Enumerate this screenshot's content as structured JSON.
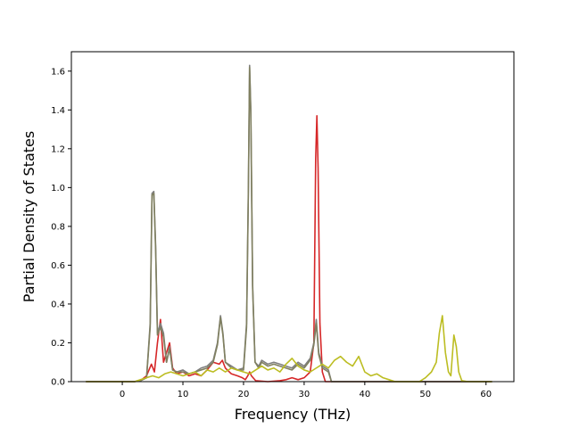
{
  "chart_data": {
    "type": "line",
    "xlabel": "Frequency (THz)",
    "ylabel": "Partial Density of States",
    "xlim": [
      -8.4,
      64.6
    ],
    "ylim": [
      0.0,
      1.7
    ],
    "xticks": [
      0,
      10,
      20,
      30,
      40,
      50,
      60
    ],
    "yticks": [
      0.0,
      0.2,
      0.4,
      0.6,
      0.8,
      1.0,
      1.2,
      1.4,
      1.6
    ],
    "xtick_labels": [
      "0",
      "10",
      "20",
      "30",
      "40",
      "50",
      "60"
    ],
    "ytick_labels": [
      "0.0",
      "0.2",
      "0.4",
      "0.6",
      "0.8",
      "1.0",
      "1.2",
      "1.4",
      "1.6"
    ],
    "grid": false,
    "series": [
      {
        "color": "#d62728",
        "points": [
          [
            -6,
            0
          ],
          [
            2,
            0
          ],
          [
            3,
            0.005
          ],
          [
            4,
            0.03
          ],
          [
            4.8,
            0.09
          ],
          [
            5.3,
            0.05
          ],
          [
            5.8,
            0.2
          ],
          [
            6.3,
            0.32
          ],
          [
            6.8,
            0.1
          ],
          [
            7.3,
            0.15
          ],
          [
            7.8,
            0.2
          ],
          [
            8.3,
            0.07
          ],
          [
            9,
            0.04
          ],
          [
            10,
            0.05
          ],
          [
            11,
            0.03
          ],
          [
            12,
            0.04
          ],
          [
            13,
            0.03
          ],
          [
            14,
            0.06
          ],
          [
            15,
            0.1
          ],
          [
            16,
            0.09
          ],
          [
            16.5,
            0.11
          ],
          [
            17,
            0.07
          ],
          [
            18,
            0.04
          ],
          [
            19,
            0.03
          ],
          [
            19.8,
            0.02
          ],
          [
            20.3,
            0.01
          ],
          [
            20.7,
            0.03
          ],
          [
            21,
            0.05
          ],
          [
            21.3,
            0.03
          ],
          [
            22,
            0.005
          ],
          [
            24,
            0.0
          ],
          [
            26,
            0.005
          ],
          [
            27,
            0.01
          ],
          [
            28,
            0.02
          ],
          [
            29,
            0.01
          ],
          [
            30,
            0.02
          ],
          [
            31,
            0.05
          ],
          [
            31.6,
            0.2
          ],
          [
            31.9,
            1.15
          ],
          [
            32.1,
            1.37
          ],
          [
            32.3,
            1.1
          ],
          [
            32.6,
            0.3
          ],
          [
            33,
            0.05
          ],
          [
            33.5,
            0.0
          ],
          [
            36,
            0.0
          ],
          [
            61,
            0.0
          ]
        ]
      },
      {
        "color": "#7f7f7f",
        "points": [
          [
            -6,
            0
          ],
          [
            2,
            0
          ],
          [
            3,
            0.005
          ],
          [
            4,
            0.02
          ],
          [
            4.6,
            0.3
          ],
          [
            4.9,
            0.97
          ],
          [
            5.2,
            0.98
          ],
          [
            5.5,
            0.7
          ],
          [
            5.8,
            0.25
          ],
          [
            6.3,
            0.3
          ],
          [
            6.8,
            0.25
          ],
          [
            7.3,
            0.1
          ],
          [
            7.8,
            0.18
          ],
          [
            8.3,
            0.06
          ],
          [
            9,
            0.05
          ],
          [
            10,
            0.06
          ],
          [
            11,
            0.04
          ],
          [
            12,
            0.05
          ],
          [
            13,
            0.07
          ],
          [
            14,
            0.08
          ],
          [
            15,
            0.11
          ],
          [
            15.7,
            0.2
          ],
          [
            16.2,
            0.34
          ],
          [
            16.6,
            0.25
          ],
          [
            17,
            0.1
          ],
          [
            18,
            0.08
          ],
          [
            19,
            0.06
          ],
          [
            20,
            0.07
          ],
          [
            20.5,
            0.3
          ],
          [
            20.8,
            1.0
          ],
          [
            21,
            1.63
          ],
          [
            21.2,
            1.4
          ],
          [
            21.5,
            0.5
          ],
          [
            21.9,
            0.1
          ],
          [
            22.5,
            0.08
          ],
          [
            23,
            0.11
          ],
          [
            24,
            0.09
          ],
          [
            25,
            0.1
          ],
          [
            26,
            0.09
          ],
          [
            27,
            0.08
          ],
          [
            28,
            0.07
          ],
          [
            29,
            0.1
          ],
          [
            30,
            0.08
          ],
          [
            31,
            0.12
          ],
          [
            31.6,
            0.2
          ],
          [
            32,
            0.32
          ],
          [
            32.4,
            0.15
          ],
          [
            33,
            0.08
          ],
          [
            34,
            0.06
          ],
          [
            34.5,
            0.0
          ],
          [
            61,
            0.0
          ]
        ]
      },
      {
        "color": "#808060",
        "points": [
          [
            -6,
            0
          ],
          [
            2,
            0
          ],
          [
            3,
            0.005
          ],
          [
            4,
            0.02
          ],
          [
            4.6,
            0.28
          ],
          [
            4.9,
            0.96
          ],
          [
            5.2,
            0.97
          ],
          [
            5.5,
            0.68
          ],
          [
            5.8,
            0.24
          ],
          [
            6.3,
            0.28
          ],
          [
            6.8,
            0.23
          ],
          [
            7.3,
            0.1
          ],
          [
            7.8,
            0.17
          ],
          [
            8.3,
            0.06
          ],
          [
            9,
            0.05
          ],
          [
            10,
            0.05
          ],
          [
            11,
            0.04
          ],
          [
            12,
            0.05
          ],
          [
            13,
            0.06
          ],
          [
            14,
            0.07
          ],
          [
            15,
            0.1
          ],
          [
            15.7,
            0.19
          ],
          [
            16.2,
            0.33
          ],
          [
            16.6,
            0.24
          ],
          [
            17,
            0.1
          ],
          [
            18,
            0.07
          ],
          [
            19,
            0.06
          ],
          [
            20,
            0.06
          ],
          [
            20.5,
            0.28
          ],
          [
            20.8,
            0.98
          ],
          [
            21,
            1.62
          ],
          [
            21.2,
            1.38
          ],
          [
            21.5,
            0.48
          ],
          [
            21.9,
            0.1
          ],
          [
            22.5,
            0.07
          ],
          [
            23,
            0.1
          ],
          [
            24,
            0.08
          ],
          [
            25,
            0.09
          ],
          [
            26,
            0.08
          ],
          [
            27,
            0.07
          ],
          [
            28,
            0.06
          ],
          [
            29,
            0.09
          ],
          [
            30,
            0.07
          ],
          [
            31,
            0.11
          ],
          [
            31.6,
            0.19
          ],
          [
            32,
            0.3
          ],
          [
            32.4,
            0.14
          ],
          [
            33,
            0.07
          ],
          [
            34,
            0.05
          ],
          [
            34.5,
            0.0
          ],
          [
            61,
            0.0
          ]
        ]
      },
      {
        "color": "#bcbd22",
        "points": [
          [
            -6,
            0
          ],
          [
            2,
            0
          ],
          [
            3,
            0.01
          ],
          [
            4,
            0.02
          ],
          [
            5,
            0.03
          ],
          [
            6,
            0.02
          ],
          [
            7,
            0.04
          ],
          [
            8,
            0.05
          ],
          [
            9,
            0.04
          ],
          [
            10,
            0.03
          ],
          [
            11,
            0.04
          ],
          [
            12,
            0.05
          ],
          [
            13,
            0.03
          ],
          [
            14,
            0.06
          ],
          [
            15,
            0.05
          ],
          [
            16,
            0.07
          ],
          [
            17,
            0.05
          ],
          [
            18,
            0.07
          ],
          [
            19,
            0.06
          ],
          [
            20,
            0.05
          ],
          [
            21,
            0.04
          ],
          [
            22,
            0.06
          ],
          [
            23,
            0.08
          ],
          [
            24,
            0.06
          ],
          [
            25,
            0.07
          ],
          [
            26,
            0.05
          ],
          [
            27,
            0.09
          ],
          [
            28,
            0.12
          ],
          [
            29,
            0.08
          ],
          [
            30,
            0.06
          ],
          [
            31,
            0.05
          ],
          [
            32,
            0.07
          ],
          [
            33,
            0.09
          ],
          [
            34,
            0.07
          ],
          [
            35,
            0.11
          ],
          [
            36,
            0.13
          ],
          [
            37,
            0.1
          ],
          [
            38,
            0.08
          ],
          [
            39,
            0.13
          ],
          [
            40,
            0.05
          ],
          [
            41,
            0.03
          ],
          [
            42,
            0.04
          ],
          [
            43,
            0.02
          ],
          [
            44,
            0.01
          ],
          [
            45,
            0.0
          ],
          [
            49,
            0.0
          ],
          [
            50,
            0.02
          ],
          [
            51,
            0.05
          ],
          [
            51.8,
            0.1
          ],
          [
            52.3,
            0.25
          ],
          [
            52.8,
            0.34
          ],
          [
            53.3,
            0.15
          ],
          [
            53.8,
            0.05
          ],
          [
            54.2,
            0.03
          ],
          [
            54.7,
            0.24
          ],
          [
            55.1,
            0.18
          ],
          [
            55.5,
            0.05
          ],
          [
            56,
            0.005
          ],
          [
            57,
            0.0
          ],
          [
            61,
            0.0
          ]
        ]
      }
    ]
  }
}
